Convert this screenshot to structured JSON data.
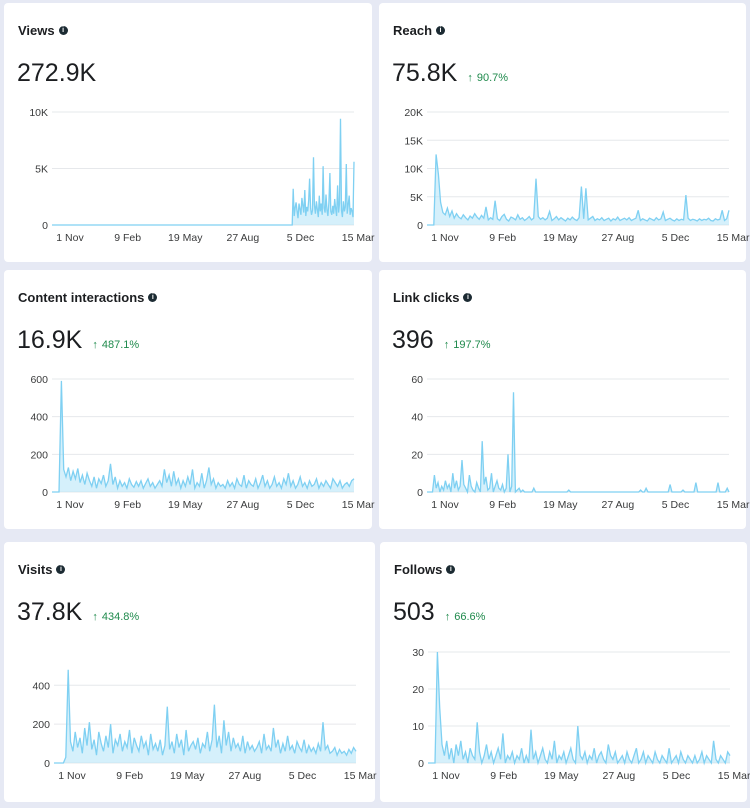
{
  "colors": {
    "line": "#7fd0f2",
    "fill": "#b3e3f8",
    "grid": "#e6e8eb",
    "delta": "#1f8a4c"
  },
  "cards": [
    {
      "title": "Views",
      "value": "272.9K",
      "delta": "",
      "chart_data": {
        "type": "area",
        "yticks": [
          "10K",
          "5K",
          "0"
        ],
        "ymax": 10000,
        "xticks": [
          "1 Nov",
          "9 Feb",
          "19 May",
          "27 Aug",
          "5 Dec",
          "15 Mar"
        ],
        "values": [
          0,
          0,
          0,
          0,
          0,
          0,
          0,
          0,
          0,
          0,
          0,
          0,
          0,
          0,
          0,
          0,
          0,
          0,
          0,
          0,
          0,
          0,
          0,
          0,
          0,
          0,
          0,
          0,
          0,
          0,
          0,
          0,
          0,
          0,
          0,
          0,
          0,
          0,
          0,
          0,
          0,
          0,
          0,
          0,
          0,
          0,
          0,
          0,
          0,
          0,
          0,
          0,
          0,
          0,
          0,
          0,
          0,
          0,
          0,
          0,
          0,
          0,
          0,
          0,
          0,
          0,
          0,
          0,
          0,
          0,
          0,
          0,
          0,
          0,
          0,
          0,
          0,
          0,
          0,
          0,
          0,
          0,
          0,
          0,
          0,
          0,
          0,
          0,
          0,
          0,
          0,
          0,
          0,
          0,
          0,
          0,
          0,
          0,
          0,
          0,
          0,
          0,
          0,
          0,
          0,
          0,
          0,
          0,
          0,
          0,
          0,
          0,
          0,
          0,
          0,
          0,
          0,
          0,
          0,
          0,
          0,
          0,
          0,
          0,
          0,
          0,
          0,
          0,
          0,
          0,
          0,
          0,
          0,
          0,
          0,
          0,
          0,
          0,
          0,
          0,
          0,
          0,
          0,
          0,
          0,
          0,
          0,
          0,
          0,
          0,
          0,
          0,
          0,
          0,
          0,
          0,
          0,
          0,
          0,
          0,
          0,
          0,
          0,
          0,
          0,
          0,
          0,
          0,
          0,
          0,
          0,
          0,
          0,
          0,
          0,
          0,
          0,
          0,
          0,
          0,
          0,
          0,
          0,
          0,
          0,
          0,
          0,
          0,
          0,
          0,
          0,
          0,
          0,
          0,
          0,
          0,
          0,
          0,
          0,
          0,
          0,
          0,
          0,
          0,
          0,
          0,
          0,
          0,
          0,
          0,
          0,
          0,
          0,
          0,
          0,
          0,
          0,
          0,
          0,
          0,
          0,
          0,
          0,
          0,
          0,
          0,
          0,
          0,
          0,
          0,
          0,
          0,
          0,
          0,
          0,
          0,
          0,
          0,
          0,
          0,
          0,
          0,
          0,
          0,
          0,
          0,
          0,
          0,
          0,
          0,
          3200,
          800,
          1500,
          2000,
          1200,
          600,
          1900,
          1400,
          900,
          2400,
          1700,
          1100,
          3100,
          800,
          1600,
          1200,
          2200,
          4100,
          1500,
          900,
          1300,
          6000,
          1800,
          1000,
          2100,
          1400,
          700,
          2600,
          1200,
          1900,
          900,
          5200,
          1500,
          1100,
          2700,
          1300,
          800,
          2000,
          4600,
          1200,
          900,
          1700,
          1000,
          2300,
          1400,
          800,
          3500,
          1100,
          1900,
          9400,
          1300,
          700,
          2100,
          1200,
          1600,
          5400,
          1000,
          1800,
          2600,
          900,
          1500,
          1200,
          700,
          5600
        ]
      }
    },
    {
      "title": "Reach",
      "value": "75.8K",
      "delta": "90.7%",
      "chart_data": {
        "type": "area",
        "yticks": [
          "20K",
          "15K",
          "10K",
          "5K",
          "0"
        ],
        "ymax": 20000,
        "xticks": [
          "1 Nov",
          "9 Feb",
          "19 May",
          "27 Aug",
          "5 Dec",
          "15 Mar"
        ],
        "values": [
          0,
          0,
          0,
          0,
          12500,
          9000,
          4000,
          2200,
          1800,
          3000,
          1500,
          2500,
          1200,
          2000,
          1400,
          1100,
          1800,
          1300,
          900,
          1600,
          1200,
          2000,
          1400,
          1000,
          1700,
          1200,
          3200,
          900,
          1300,
          1000,
          4300,
          1100,
          800,
          1500,
          1900,
          1000,
          700,
          1400,
          1200,
          900,
          1800,
          1000,
          1300,
          800,
          1100,
          1500,
          900,
          1200,
          8200,
          1500,
          1000,
          1300,
          900,
          1200,
          2400,
          800,
          1100,
          1500,
          900,
          1300,
          1000,
          700,
          1200,
          900,
          1400,
          1000,
          800,
          1300,
          6800,
          1100,
          6500,
          900,
          1200,
          1500,
          800,
          1100,
          900,
          1300,
          800,
          1000,
          1200,
          700,
          1100,
          900,
          1400,
          800,
          1000,
          1200,
          900,
          1300,
          800,
          1000,
          1200,
          2600,
          800,
          1100,
          900,
          700,
          1200,
          1000,
          800,
          1300,
          900,
          1100,
          2300,
          800,
          1000,
          1200,
          900,
          700,
          1100,
          800,
          1000,
          900,
          5300,
          1200,
          800,
          1000,
          900,
          700,
          1100,
          800,
          1000,
          900,
          1200,
          800,
          700,
          1100,
          900,
          1000,
          2600,
          800,
          1100,
          2600
        ]
      }
    },
    {
      "title": "Content interactions",
      "value": "16.9K",
      "delta": "487.1%",
      "chart_data": {
        "type": "area",
        "yticks": [
          "600",
          "400",
          "200",
          "0"
        ],
        "ymax": 600,
        "xticks": [
          "1 Nov",
          "9 Feb",
          "19 May",
          "27 Aug",
          "5 Dec",
          "15 Mar"
        ],
        "values": [
          0,
          0,
          0,
          0,
          590,
          120,
          80,
          130,
          60,
          110,
          70,
          125,
          50,
          90,
          40,
          100,
          60,
          30,
          80,
          20,
          70,
          45,
          90,
          30,
          60,
          150,
          40,
          80,
          20,
          60,
          30,
          50,
          20,
          70,
          40,
          25,
          55,
          30,
          60,
          20,
          45,
          70,
          30,
          50,
          20,
          40,
          60,
          30,
          120,
          50,
          90,
          30,
          110,
          40,
          70,
          20,
          60,
          30,
          80,
          40,
          120,
          20,
          50,
          30,
          100,
          20,
          60,
          130,
          40,
          70,
          20,
          50,
          30,
          40,
          20,
          60,
          30,
          50,
          20,
          70,
          40,
          30,
          90,
          20,
          60,
          40,
          30,
          70,
          20,
          50,
          90,
          30,
          60,
          20,
          40,
          80,
          30,
          50,
          20,
          70,
          40,
          100,
          30,
          60,
          20,
          40,
          80,
          30,
          50,
          20,
          60,
          30,
          40,
          70,
          20,
          50,
          30,
          60,
          40,
          20,
          70,
          50,
          30,
          60,
          20,
          40,
          50,
          30,
          60,
          70
        ]
      }
    },
    {
      "title": "Link clicks",
      "value": "396",
      "delta": "197.7%",
      "chart_data": {
        "type": "area",
        "yticks": [
          "60",
          "40",
          "20",
          "0"
        ],
        "ymax": 60,
        "xticks": [
          "1 Nov",
          "9 Feb",
          "19 May",
          "27 Aug",
          "5 Dec",
          "15 Mar"
        ],
        "values": [
          0,
          0,
          0,
          0,
          9,
          2,
          5,
          0,
          3,
          1,
          6,
          2,
          4,
          0,
          10,
          2,
          6,
          1,
          3,
          17,
          4,
          2,
          0,
          9,
          3,
          1,
          0,
          5,
          2,
          0,
          27,
          4,
          8,
          1,
          2,
          10,
          0,
          3,
          6,
          2,
          1,
          4,
          0,
          2,
          20,
          0,
          3,
          53,
          0,
          1,
          2,
          0,
          1,
          0,
          0,
          0,
          0,
          0,
          2,
          0,
          0,
          0,
          0,
          0,
          0,
          0,
          0,
          0,
          0,
          0,
          0,
          0,
          0,
          0,
          0,
          0,
          0,
          1,
          0,
          0,
          0,
          0,
          0,
          0,
          0,
          0,
          0,
          0,
          0,
          0,
          0,
          0,
          0,
          0,
          0,
          0,
          0,
          0,
          0,
          0,
          0,
          0,
          0,
          0,
          0,
          0,
          0,
          0,
          0,
          0,
          0,
          0,
          0,
          0,
          0,
          0,
          1,
          0,
          0,
          2,
          0,
          0,
          0,
          0,
          0,
          0,
          0,
          0,
          0,
          0,
          0,
          0,
          4,
          0,
          0,
          0,
          0,
          0,
          0,
          1,
          0,
          0,
          0,
          0,
          0,
          0,
          5,
          0,
          0,
          0,
          0,
          0,
          0,
          0,
          0,
          0,
          0,
          0,
          5,
          0,
          0,
          0,
          0,
          2,
          0
        ]
      }
    },
    {
      "title": "Visits",
      "value": "37.8K",
      "delta": "434.8%",
      "chart_data": {
        "type": "area",
        "yticks": [
          "400",
          "200",
          "0"
        ],
        "ymax": 520,
        "xticks": [
          "1 Nov",
          "9 Feb",
          "19 May",
          "27 Aug",
          "5 Dec",
          "15 Mar"
        ],
        "values": [
          0,
          0,
          0,
          0,
          0,
          30,
          480,
          110,
          60,
          160,
          80,
          130,
          50,
          180,
          90,
          210,
          70,
          120,
          40,
          160,
          100,
          60,
          140,
          80,
          200,
          50,
          120,
          90,
          150,
          60,
          110,
          80,
          170,
          50,
          130,
          90,
          60,
          140,
          80,
          110,
          40,
          150,
          70,
          100,
          60,
          120,
          40,
          90,
          290,
          70,
          110,
          50,
          150,
          80,
          120,
          40,
          170,
          60,
          90,
          110,
          70,
          130,
          50,
          100,
          80,
          160,
          60,
          120,
          300,
          80,
          140,
          50,
          220,
          90,
          160,
          60,
          130,
          80,
          100,
          60,
          140,
          50,
          110,
          70,
          90,
          60,
          80,
          110,
          50,
          150,
          70,
          90,
          60,
          180,
          80,
          120,
          50,
          100,
          60,
          140,
          70,
          90,
          50,
          110,
          80,
          60,
          120,
          50,
          90,
          60,
          80,
          50,
          100,
          60,
          210,
          70,
          90,
          50,
          60,
          80,
          40,
          70,
          50,
          60,
          40,
          70,
          50,
          80,
          60
        ]
      }
    },
    {
      "title": "Follows",
      "value": "503",
      "delta": "66.6%",
      "chart_data": {
        "type": "area",
        "yticks": [
          "30",
          "20",
          "10",
          "0"
        ],
        "ymax": 30,
        "xticks": [
          "1 Nov",
          "9 Feb",
          "19 May",
          "27 Aug",
          "5 Dec",
          "15 Mar"
        ],
        "values": [
          0,
          0,
          0,
          0,
          30,
          15,
          5,
          2,
          6,
          1,
          4,
          0,
          5,
          2,
          6,
          1,
          3,
          0,
          4,
          2,
          1,
          11,
          3,
          0,
          2,
          5,
          1,
          3,
          0,
          2,
          4,
          1,
          8,
          0,
          2,
          1,
          3,
          0,
          2,
          1,
          4,
          0,
          2,
          0,
          9,
          1,
          3,
          0,
          2,
          4,
          1,
          0,
          3,
          1,
          6,
          0,
          2,
          1,
          3,
          0,
          2,
          4,
          1,
          0,
          10,
          2,
          1,
          3,
          0,
          2,
          1,
          4,
          0,
          2,
          3,
          1,
          0,
          5,
          2,
          1,
          3,
          0,
          1,
          2,
          0,
          3,
          1,
          0,
          2,
          4,
          0,
          1,
          3,
          0,
          2,
          1,
          0,
          3,
          1,
          0,
          2,
          1,
          0,
          4,
          0,
          1,
          2,
          0,
          3,
          1,
          0,
          2,
          1,
          0,
          2,
          0,
          1,
          3,
          0,
          2,
          1,
          0,
          6,
          1,
          0,
          2,
          1,
          0,
          3,
          2
        ]
      }
    }
  ]
}
